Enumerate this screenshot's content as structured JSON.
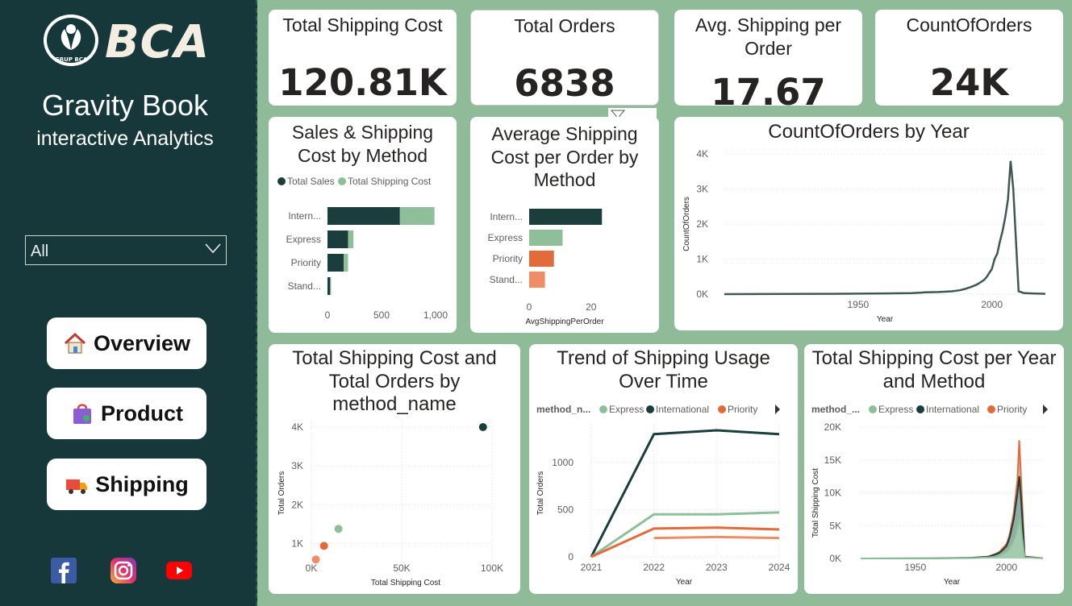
{
  "brand": {
    "logo_text": "BCA",
    "logo_sub": "GRUP BCA",
    "title": "Gravity Book",
    "subtitle": "interactive Analytics",
    "accent": "#17383a",
    "background": "#8fbb99"
  },
  "slicer": {
    "value": "All",
    "icon": "chevron-down-icon"
  },
  "nav": [
    {
      "label": "Overview",
      "icon": "house-icon"
    },
    {
      "label": "Product",
      "icon": "shopping-bag-icon"
    },
    {
      "label": "Shipping",
      "icon": "delivery-truck-icon"
    }
  ],
  "social": [
    "facebook-icon",
    "instagram-icon",
    "youtube-icon"
  ],
  "kpis": [
    {
      "title": "Total Shipping Cost",
      "value": "120.81K"
    },
    {
      "title": "Total Orders",
      "value": "6838"
    },
    {
      "title": "Avg. Shipping per Order",
      "value": "17.67"
    },
    {
      "title": "CountOfOrders",
      "value": "24K"
    }
  ],
  "colors": {
    "international": "#1b3d3b",
    "express": "#8fbe9a",
    "priority": "#e26a3b",
    "standard": "#ef8d67"
  },
  "chart_data": [
    {
      "id": "sales_shipping",
      "type": "bar",
      "title": "Sales & Shipping Cost by Method",
      "categories": [
        "Intern...",
        "Express",
        "Priority",
        "Stand..."
      ],
      "series": [
        {
          "name": "Total Sales",
          "values": [
            670,
            190,
            150,
            25
          ]
        },
        {
          "name": "Total Shipping Cost",
          "values": [
            320,
            50,
            40,
            8
          ]
        }
      ],
      "xticks": [
        "0",
        "500",
        "1,000"
      ],
      "xlim": [
        0,
        1000
      ]
    },
    {
      "id": "avg_shipping",
      "type": "bar",
      "title": "Average Shipping Cost per Order by Method",
      "categories": [
        "Intern...",
        "Express",
        "Priority",
        "Stand..."
      ],
      "values": [
        23.5,
        10.8,
        8.0,
        5.1
      ],
      "xticks": [
        "0",
        "20"
      ],
      "xlabel": "AvgShippingPerOrder",
      "xlim": [
        0,
        25
      ]
    },
    {
      "id": "count_by_year",
      "type": "line",
      "title": "CountOfOrders by Year",
      "xlabel": "Year",
      "ylabel": "CountOfOrders",
      "xticks": [
        "1950",
        "2000"
      ],
      "yticks": [
        "0K",
        "1K",
        "2K",
        "3K",
        "4K"
      ],
      "xlim": [
        1900,
        2020
      ],
      "ylim": [
        0,
        4000
      ],
      "x": [
        1900,
        1940,
        1960,
        1970,
        1975,
        1980,
        1985,
        1988,
        1990,
        1992,
        1994,
        1995,
        1996,
        1997,
        1998,
        1999,
        2000,
        2001,
        2002,
        2003,
        2004,
        2005,
        2006,
        2007,
        2008,
        2010,
        2012,
        2015,
        2020
      ],
      "y": [
        0,
        10,
        20,
        30,
        50,
        60,
        80,
        110,
        150,
        200,
        260,
        300,
        350,
        400,
        480,
        600,
        720,
        1000,
        1150,
        1500,
        1800,
        2200,
        2700,
        3800,
        3000,
        80,
        30,
        20,
        10
      ]
    },
    {
      "id": "cost_vs_orders",
      "type": "scatter",
      "title": "Total Shipping Cost and Total Orders by method_name",
      "xlabel": "Total Shipping Cost",
      "ylabel": "Total Orders",
      "xticks": [
        "0K",
        "50K",
        "100K"
      ],
      "yticks": [
        "1K",
        "2K",
        "3K",
        "4K"
      ],
      "xlim": [
        0,
        100000
      ],
      "ylim": [
        400,
        4000
      ],
      "points": [
        {
          "name": "International",
          "x": 95000,
          "y": 4000
        },
        {
          "name": "Express",
          "x": 15000,
          "y": 1380
        },
        {
          "name": "Priority",
          "x": 7000,
          "y": 940
        },
        {
          "name": "Standard",
          "x": 2500,
          "y": 590
        }
      ]
    },
    {
      "id": "trend_usage",
      "type": "line",
      "title": "Trend of Shipping Usage Over Time",
      "legend_title": "method_n...",
      "legend": [
        "Express",
        "International",
        "Priority"
      ],
      "xlabel": "Year",
      "ylabel": "Total Orders",
      "xticks": [
        "2021",
        "2022",
        "2023",
        "2024"
      ],
      "yticks": [
        "0",
        "500",
        "1000"
      ],
      "x": [
        2021,
        2022,
        2023,
        2024
      ],
      "ylim": [
        0,
        1400
      ],
      "series": [
        {
          "name": "International",
          "values": [
            0,
            1300,
            1340,
            1300
          ]
        },
        {
          "name": "Express",
          "values": [
            0,
            450,
            450,
            470
          ]
        },
        {
          "name": "Priority",
          "values": [
            0,
            300,
            310,
            290
          ]
        },
        {
          "name": "Standard",
          "values": [
            null,
            200,
            210,
            200
          ]
        }
      ]
    },
    {
      "id": "cost_per_year",
      "type": "area",
      "title": "Total Shipping Cost per Year and Method",
      "legend_title": "method_...",
      "legend": [
        "Express",
        "International",
        "Priority"
      ],
      "xlabel": "Year",
      "ylabel": "Total Shipping Cost",
      "xticks": [
        "1950",
        "2000"
      ],
      "yticks": [
        "0K",
        "5K",
        "10K",
        "15K",
        "20K"
      ],
      "xlim": [
        1920,
        2020
      ],
      "ylim": [
        0,
        20000
      ],
      "x": [
        1920,
        1960,
        1980,
        1990,
        1994,
        1996,
        1998,
        2000,
        2001,
        2002,
        2003,
        2004,
        2005,
        2006,
        2007,
        2008,
        2010,
        2020
      ],
      "series": [
        {
          "name": "Priority",
          "values": [
            0,
            20,
            100,
            300,
            700,
            1000,
            1600,
            2200,
            3000,
            4000,
            5500,
            7000,
            9500,
            12000,
            18000,
            12000,
            300,
            50
          ]
        },
        {
          "name": "International",
          "values": [
            0,
            15,
            80,
            250,
            600,
            850,
            1300,
            1900,
            2600,
            3500,
            4800,
            6000,
            8000,
            10000,
            12500,
            9000,
            250,
            40
          ]
        },
        {
          "name": "Express",
          "values": [
            0,
            10,
            50,
            150,
            300,
            450,
            700,
            1000,
            1300,
            1700,
            2200,
            2800,
            3500,
            4500,
            6000,
            4500,
            150,
            20
          ]
        }
      ]
    }
  ]
}
